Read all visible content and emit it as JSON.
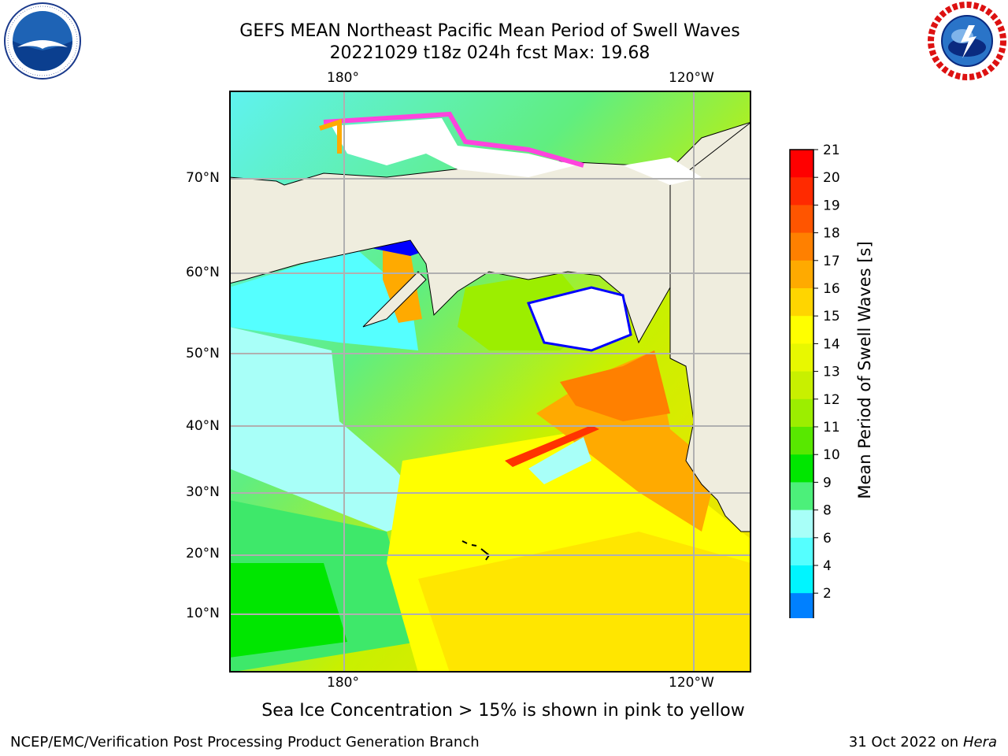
{
  "header": {
    "title_line1": "GEFS MEAN Northeast Pacific Mean Period of Swell Waves",
    "title_line2": "20221029 t18z 024h fcst   Max: 19.68"
  },
  "logos": {
    "left": "noaa-logo",
    "right": "nws-logo"
  },
  "map": {
    "lon_labels_top": [
      "180°",
      "120°W"
    ],
    "lon_labels_bottom": [
      "180°",
      "120°W"
    ],
    "lat_labels": [
      "70°N",
      "60°N",
      "50°N",
      "40°N",
      "30°N",
      "20°N",
      "10°N"
    ],
    "colors": {
      "land": "#efedde",
      "ice": "#ffffff",
      "grid": "#b0b0b0"
    }
  },
  "colorbar": {
    "title": "Mean Period of Swell Waves [s]",
    "tick_labels": [
      "21",
      "20",
      "19",
      "18",
      "17",
      "16",
      "15",
      "14",
      "13",
      "12",
      "11",
      "10",
      "9",
      "8",
      "6",
      "4",
      "2"
    ],
    "colors": [
      "#ff0000",
      "#ff2a00",
      "#ff5500",
      "#ff8000",
      "#ffaa00",
      "#ffd500",
      "#ffff00",
      "#e8f800",
      "#c8f000",
      "#9cee00",
      "#58e800",
      "#00e600",
      "#4cf07a",
      "#a8fff8",
      "#55ffff",
      "#00f5ff",
      "#0080ff"
    ],
    "extend_color": "#0000ff"
  },
  "note": "Sea Ice Concentration > 15% is shown in pink to yellow",
  "footer": {
    "left": "NCEP/EMC/Verification Post Processing Product Generation Branch",
    "date": "31 Oct 2022 on",
    "machine": "Hera"
  }
}
